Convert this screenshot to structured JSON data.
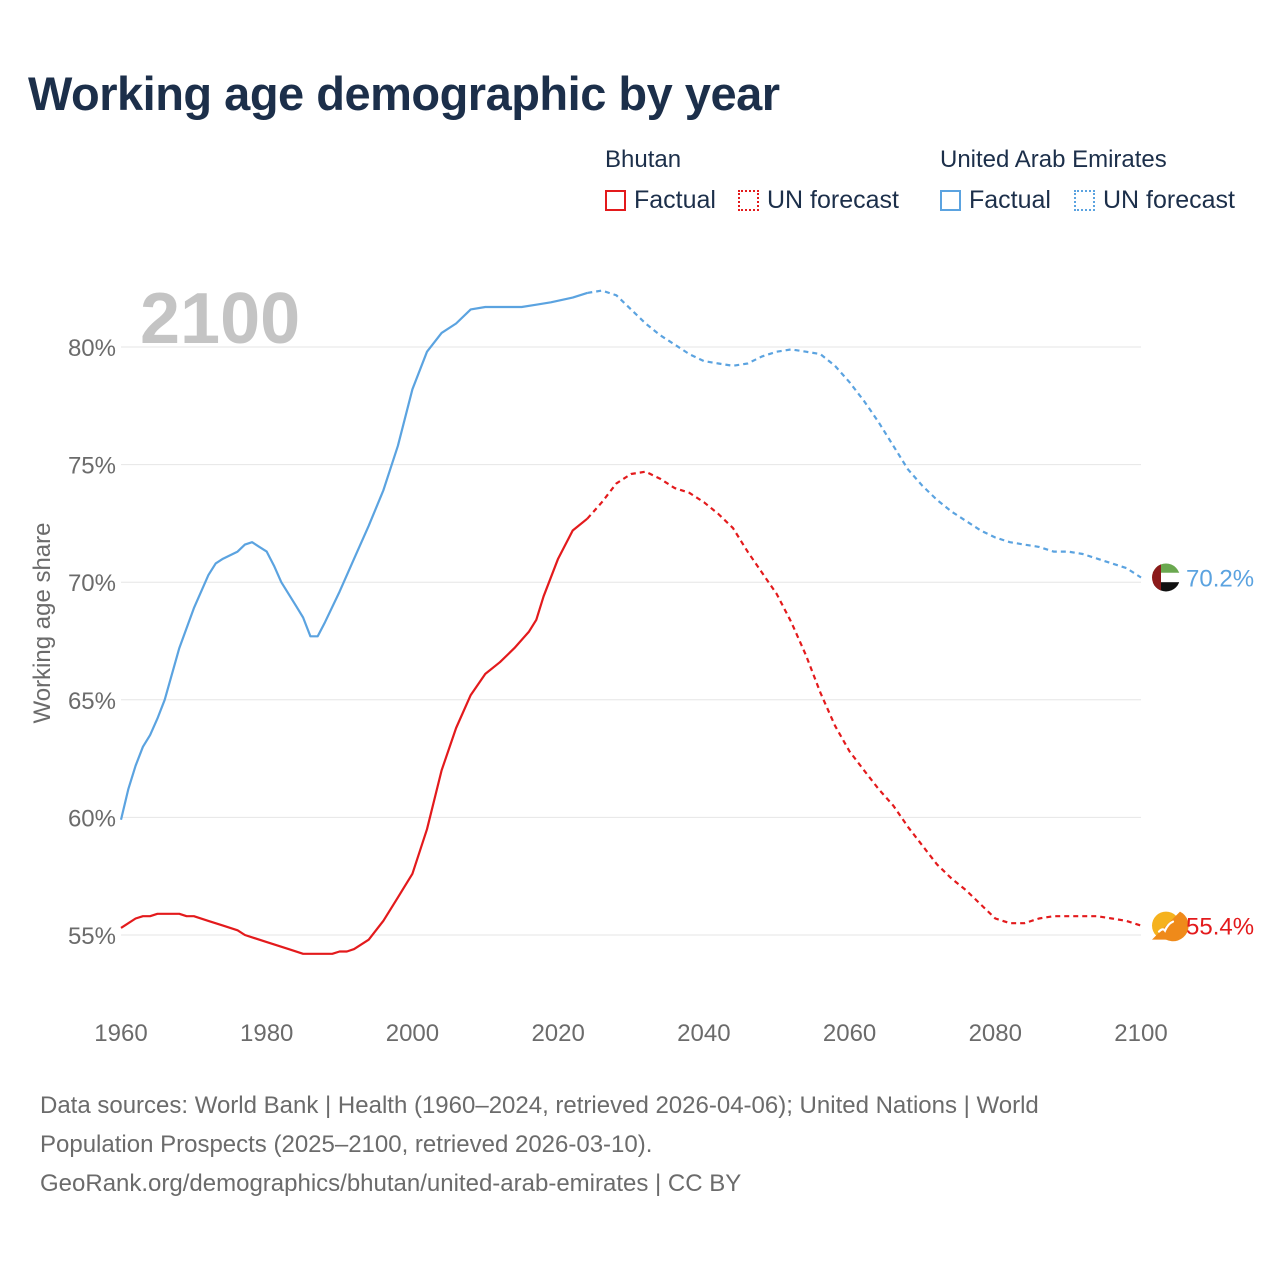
{
  "title": "Working age demographic by year",
  "legend": {
    "groups": [
      {
        "name": "Bhutan",
        "factual_label": "Factual",
        "forecast_label": "UN forecast",
        "color": "#e31a1c"
      },
      {
        "name": "United Arab Emirates",
        "factual_label": "Factual",
        "forecast_label": "UN forecast",
        "color": "#5ba3e0"
      }
    ]
  },
  "footer": {
    "line1": "Data sources: World Bank | Health (1960–2024, retrieved 2026-04-06); United Nations | World",
    "line2": "Population Prospects (2025–2100, retrieved 2026-03-10).",
    "line3": "GeoRank.org/demographics/bhutan/united-arab-emirates | CC BY"
  },
  "chart_data": {
    "type": "line",
    "title": "Working age demographic by year",
    "ylabel": "Working age share",
    "xlabel": "",
    "year_overlay": "2100",
    "xlim": [
      1960,
      2100
    ],
    "ylim": [
      52,
      84
    ],
    "x_ticks": [
      1960,
      1980,
      2000,
      2020,
      2040,
      2060,
      2080,
      2100
    ],
    "y_ticks": [
      55,
      60,
      65,
      70,
      75,
      80
    ],
    "y_tick_labels": [
      "55%",
      "60%",
      "65%",
      "70%",
      "75%",
      "80%"
    ],
    "forecast_start": 2024,
    "grid": "horizontal",
    "series": [
      {
        "name": "Bhutan",
        "color": "#e31a1c",
        "end_label": "55.4%",
        "points": [
          [
            1960,
            55.3
          ],
          [
            1962,
            55.7
          ],
          [
            1963,
            55.8
          ],
          [
            1964,
            55.8
          ],
          [
            1965,
            55.9
          ],
          [
            1967,
            55.9
          ],
          [
            1968,
            55.9
          ],
          [
            1969,
            55.8
          ],
          [
            1970,
            55.8
          ],
          [
            1972,
            55.6
          ],
          [
            1974,
            55.4
          ],
          [
            1976,
            55.2
          ],
          [
            1977,
            55.0
          ],
          [
            1980,
            54.7
          ],
          [
            1983,
            54.4
          ],
          [
            1985,
            54.2
          ],
          [
            1987,
            54.2
          ],
          [
            1989,
            54.2
          ],
          [
            1990,
            54.3
          ],
          [
            1991,
            54.3
          ],
          [
            1992,
            54.4
          ],
          [
            1994,
            54.8
          ],
          [
            1996,
            55.6
          ],
          [
            1998,
            56.6
          ],
          [
            2000,
            57.6
          ],
          [
            2002,
            59.5
          ],
          [
            2004,
            62.0
          ],
          [
            2006,
            63.8
          ],
          [
            2008,
            65.2
          ],
          [
            2010,
            66.1
          ],
          [
            2012,
            66.6
          ],
          [
            2014,
            67.2
          ],
          [
            2016,
            67.9
          ],
          [
            2017,
            68.4
          ],
          [
            2018,
            69.4
          ],
          [
            2020,
            71.0
          ],
          [
            2022,
            72.2
          ],
          [
            2024,
            72.7
          ],
          [
            2026,
            73.4
          ],
          [
            2028,
            74.2
          ],
          [
            2030,
            74.6
          ],
          [
            2032,
            74.7
          ],
          [
            2034,
            74.4
          ],
          [
            2036,
            74.0
          ],
          [
            2038,
            73.8
          ],
          [
            2040,
            73.4
          ],
          [
            2042,
            72.9
          ],
          [
            2044,
            72.3
          ],
          [
            2046,
            71.3
          ],
          [
            2048,
            70.4
          ],
          [
            2050,
            69.5
          ],
          [
            2052,
            68.3
          ],
          [
            2054,
            66.9
          ],
          [
            2056,
            65.3
          ],
          [
            2058,
            63.9
          ],
          [
            2060,
            62.8
          ],
          [
            2062,
            62.0
          ],
          [
            2064,
            61.2
          ],
          [
            2066,
            60.5
          ],
          [
            2068,
            59.6
          ],
          [
            2070,
            58.8
          ],
          [
            2072,
            58.0
          ],
          [
            2074,
            57.4
          ],
          [
            2076,
            56.9
          ],
          [
            2078,
            56.3
          ],
          [
            2080,
            55.7
          ],
          [
            2082,
            55.5
          ],
          [
            2084,
            55.5
          ],
          [
            2086,
            55.7
          ],
          [
            2088,
            55.8
          ],
          [
            2090,
            55.8
          ],
          [
            2092,
            55.8
          ],
          [
            2094,
            55.8
          ],
          [
            2096,
            55.7
          ],
          [
            2098,
            55.6
          ],
          [
            2100,
            55.4
          ]
        ]
      },
      {
        "name": "United Arab Emirates",
        "color": "#5ba3e0",
        "end_label": "70.2%",
        "points": [
          [
            1960,
            59.9
          ],
          [
            1961,
            61.2
          ],
          [
            1962,
            62.2
          ],
          [
            1963,
            63.0
          ],
          [
            1964,
            63.5
          ],
          [
            1965,
            64.2
          ],
          [
            1966,
            65.0
          ],
          [
            1968,
            67.2
          ],
          [
            1970,
            68.9
          ],
          [
            1972,
            70.3
          ],
          [
            1973,
            70.8
          ],
          [
            1974,
            71.0
          ],
          [
            1976,
            71.3
          ],
          [
            1977,
            71.6
          ],
          [
            1978,
            71.7
          ],
          [
            1979,
            71.5
          ],
          [
            1980,
            71.3
          ],
          [
            1981,
            70.7
          ],
          [
            1982,
            70.0
          ],
          [
            1984,
            69.0
          ],
          [
            1985,
            68.5
          ],
          [
            1986,
            67.7
          ],
          [
            1987,
            67.7
          ],
          [
            1988,
            68.3
          ],
          [
            1990,
            69.6
          ],
          [
            1992,
            71.0
          ],
          [
            1994,
            72.4
          ],
          [
            1996,
            73.9
          ],
          [
            1998,
            75.8
          ],
          [
            2000,
            78.2
          ],
          [
            2002,
            79.8
          ],
          [
            2004,
            80.6
          ],
          [
            2006,
            81.0
          ],
          [
            2008,
            81.6
          ],
          [
            2010,
            81.7
          ],
          [
            2015,
            81.7
          ],
          [
            2017,
            81.8
          ],
          [
            2019,
            81.9
          ],
          [
            2022,
            82.1
          ],
          [
            2024,
            82.3
          ],
          [
            2026,
            82.4
          ],
          [
            2028,
            82.2
          ],
          [
            2030,
            81.6
          ],
          [
            2032,
            81.0
          ],
          [
            2034,
            80.5
          ],
          [
            2036,
            80.1
          ],
          [
            2038,
            79.7
          ],
          [
            2040,
            79.4
          ],
          [
            2042,
            79.3
          ],
          [
            2044,
            79.2
          ],
          [
            2046,
            79.3
          ],
          [
            2048,
            79.6
          ],
          [
            2050,
            79.8
          ],
          [
            2052,
            79.9
          ],
          [
            2054,
            79.8
          ],
          [
            2056,
            79.7
          ],
          [
            2058,
            79.2
          ],
          [
            2060,
            78.5
          ],
          [
            2062,
            77.7
          ],
          [
            2064,
            76.8
          ],
          [
            2066,
            75.8
          ],
          [
            2068,
            74.8
          ],
          [
            2070,
            74.1
          ],
          [
            2072,
            73.5
          ],
          [
            2074,
            73.0
          ],
          [
            2076,
            72.6
          ],
          [
            2078,
            72.2
          ],
          [
            2080,
            71.9
          ],
          [
            2082,
            71.7
          ],
          [
            2084,
            71.6
          ],
          [
            2086,
            71.5
          ],
          [
            2088,
            71.3
          ],
          [
            2090,
            71.3
          ],
          [
            2092,
            71.2
          ],
          [
            2094,
            71.0
          ],
          [
            2096,
            70.8
          ],
          [
            2098,
            70.6
          ],
          [
            2100,
            70.2
          ]
        ]
      }
    ]
  }
}
